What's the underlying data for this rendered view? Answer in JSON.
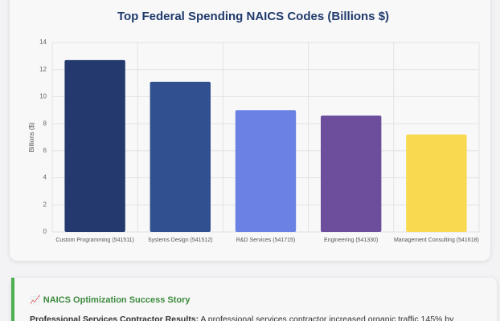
{
  "chart_data": {
    "type": "bar",
    "title": "Top Federal Spending NAICS Codes (Billions $)",
    "y_label": "Billions ($)",
    "categories": [
      "Custom Programming (541511)",
      "Systems Design (541512)",
      "R&D Services (541715)",
      "Engineering (541330)",
      "Management Consulting (541618)"
    ],
    "values": [
      12.7,
      11.1,
      9.0,
      8.6,
      7.2
    ],
    "colors": [
      "#243a6e",
      "#30508f",
      "#6b81e3",
      "#6c4e9d",
      "#f9d94f"
    ],
    "ylim": [
      0,
      14
    ],
    "yticks": [
      0,
      2,
      4,
      6,
      8,
      10,
      12,
      14
    ],
    "grid": true
  },
  "story": {
    "icon": "📈",
    "heading": "NAICS Optimization Success Story",
    "lead": "Professional Services Contractor Results:",
    "text": "A professional services contractor increased organic traffic 145% by"
  }
}
